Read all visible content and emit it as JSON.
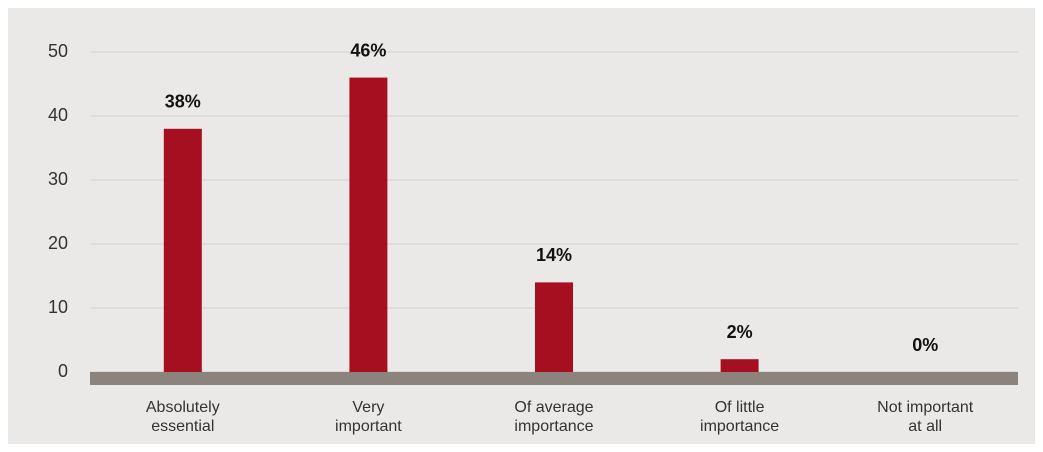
{
  "chart_data": {
    "type": "bar",
    "categories": [
      "Absolutely\nessential",
      "Very\nimportant",
      "Of average\nimportance",
      "Of little\nimportance",
      "Not important\nat all"
    ],
    "values": [
      38,
      46,
      14,
      2,
      0
    ],
    "value_labels": [
      "38%",
      "46%",
      "14%",
      "2%",
      "0%"
    ],
    "color": "#a50f20",
    "ylim": [
      0,
      50
    ],
    "yticks": [
      0,
      10,
      20,
      30,
      40,
      50
    ],
    "grid": true
  }
}
